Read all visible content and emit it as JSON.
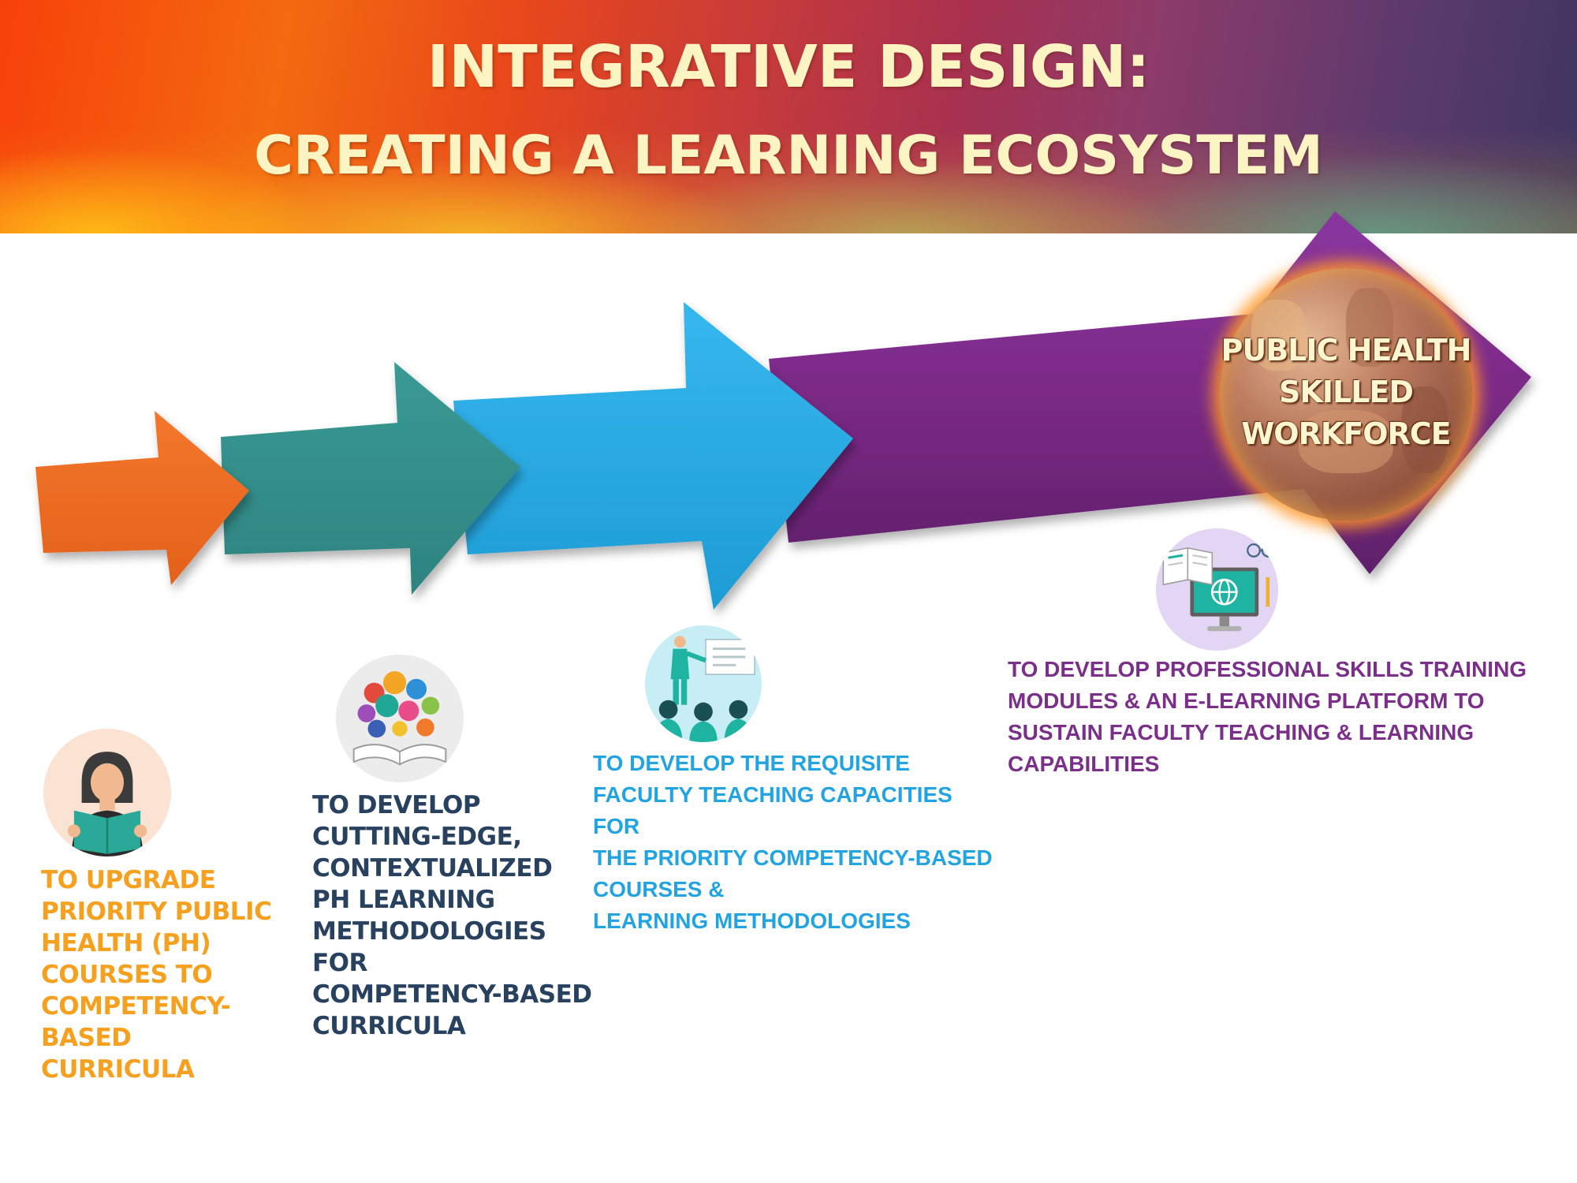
{
  "header": {
    "title_line1": "INTEGRATIVE DESIGN:",
    "title_line2": "CREATING A LEARNING ECOSYSTEM"
  },
  "colors": {
    "arrow1": "#ef6a23",
    "arrow2": "#338f8b",
    "arrow3": "#25a9e1",
    "arrow4": "#7b2a86",
    "goal1_text": "#f5a01e",
    "goal2_text": "#27415f",
    "goal3_text": "#23a4e2",
    "goal4_text": "#7b2f8a"
  },
  "outcome": {
    "label": "PUBLIC HEALTH\nSKILLED\nWORKFORCE"
  },
  "goals": [
    {
      "text": "TO UPGRADE\nPRIORITY PUBLIC\nHEALTH (PH)\nCOURSES TO\nCOMPETENCY-BASED\nCURRICULA",
      "icon": "reading-person-icon"
    },
    {
      "text": "TO DEVELOP\nCUTTING-EDGE,\nCONTEXTUALIZED\nPH LEARNING\nMETHODOLOGIES FOR\nCOMPETENCY-BASED\nCURRICULA",
      "icon": "open-book-ideas-icon"
    },
    {
      "text": "TO DEVELOP THE REQUISITE\nFACULTY TEACHING CAPACITIES FOR\nTHE PRIORITY COMPETENCY-BASED\nCOURSES &\nLEARNING METHODOLOGIES",
      "icon": "presenter-audience-icon"
    },
    {
      "text": "TO DEVELOP PROFESSIONAL SKILLS TRAINING\nMODULES & AN E-LEARNING PLATFORM TO\nSUSTAIN FACULTY TEACHING & LEARNING\nCAPABILITIES",
      "icon": "e-learning-computer-icon"
    }
  ]
}
